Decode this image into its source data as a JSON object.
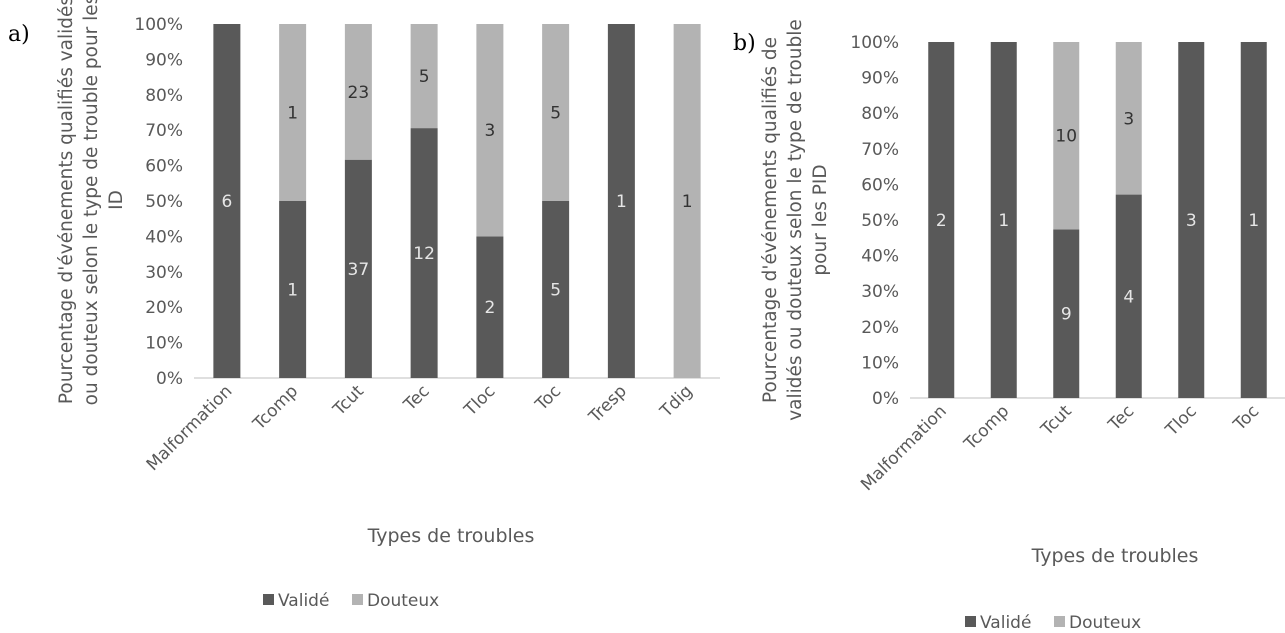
{
  "colors": {
    "valide": "#595959",
    "douteux": "#b3b3b3",
    "text": "#595959",
    "axis": "#bfbfbf"
  },
  "chart_data": [
    {
      "panel": "a)",
      "type": "bar",
      "stacked": "percent",
      "ylabel_lines": [
        "Pourcentage d'événements qualifiés validés",
        "ou douteux selon le type de trouble pour les",
        "ID"
      ],
      "xlabel": "Types de troubles",
      "ylim": [
        0,
        100
      ],
      "yticks": [
        "0%",
        "10%",
        "20%",
        "30%",
        "40%",
        "50%",
        "60%",
        "70%",
        "80%",
        "90%",
        "100%"
      ],
      "categories": [
        "Malformation",
        "Tcomp",
        "Tcut",
        "Tec",
        "Tloc",
        "Toc",
        "Tresp",
        "Tdig"
      ],
      "series": [
        {
          "name": "Validé",
          "values": [
            6,
            1,
            37,
            12,
            2,
            5,
            1,
            0
          ]
        },
        {
          "name": "Douteux",
          "values": [
            0,
            1,
            23,
            5,
            3,
            5,
            0,
            1
          ]
        }
      ],
      "legend": "bottom"
    },
    {
      "panel": "b)",
      "type": "bar",
      "stacked": "percent",
      "ylabel_lines": [
        "Pourcentage d'événements qualifiés de",
        "validés ou douteux selon le type de trouble",
        "pour les PID"
      ],
      "xlabel": "Types de troubles",
      "ylim": [
        0,
        100
      ],
      "yticks": [
        "0%",
        "10%",
        "20%",
        "30%",
        "40%",
        "50%",
        "60%",
        "70%",
        "80%",
        "90%",
        "100%"
      ],
      "categories": [
        "Malformation",
        "Tcomp",
        "Tcut",
        "Tec",
        "Tloc",
        "Toc"
      ],
      "series": [
        {
          "name": "Validé",
          "values": [
            2,
            1,
            9,
            4,
            3,
            1
          ]
        },
        {
          "name": "Douteux",
          "values": [
            0,
            0,
            10,
            3,
            0,
            0
          ]
        }
      ],
      "legend": "bottom"
    }
  ]
}
